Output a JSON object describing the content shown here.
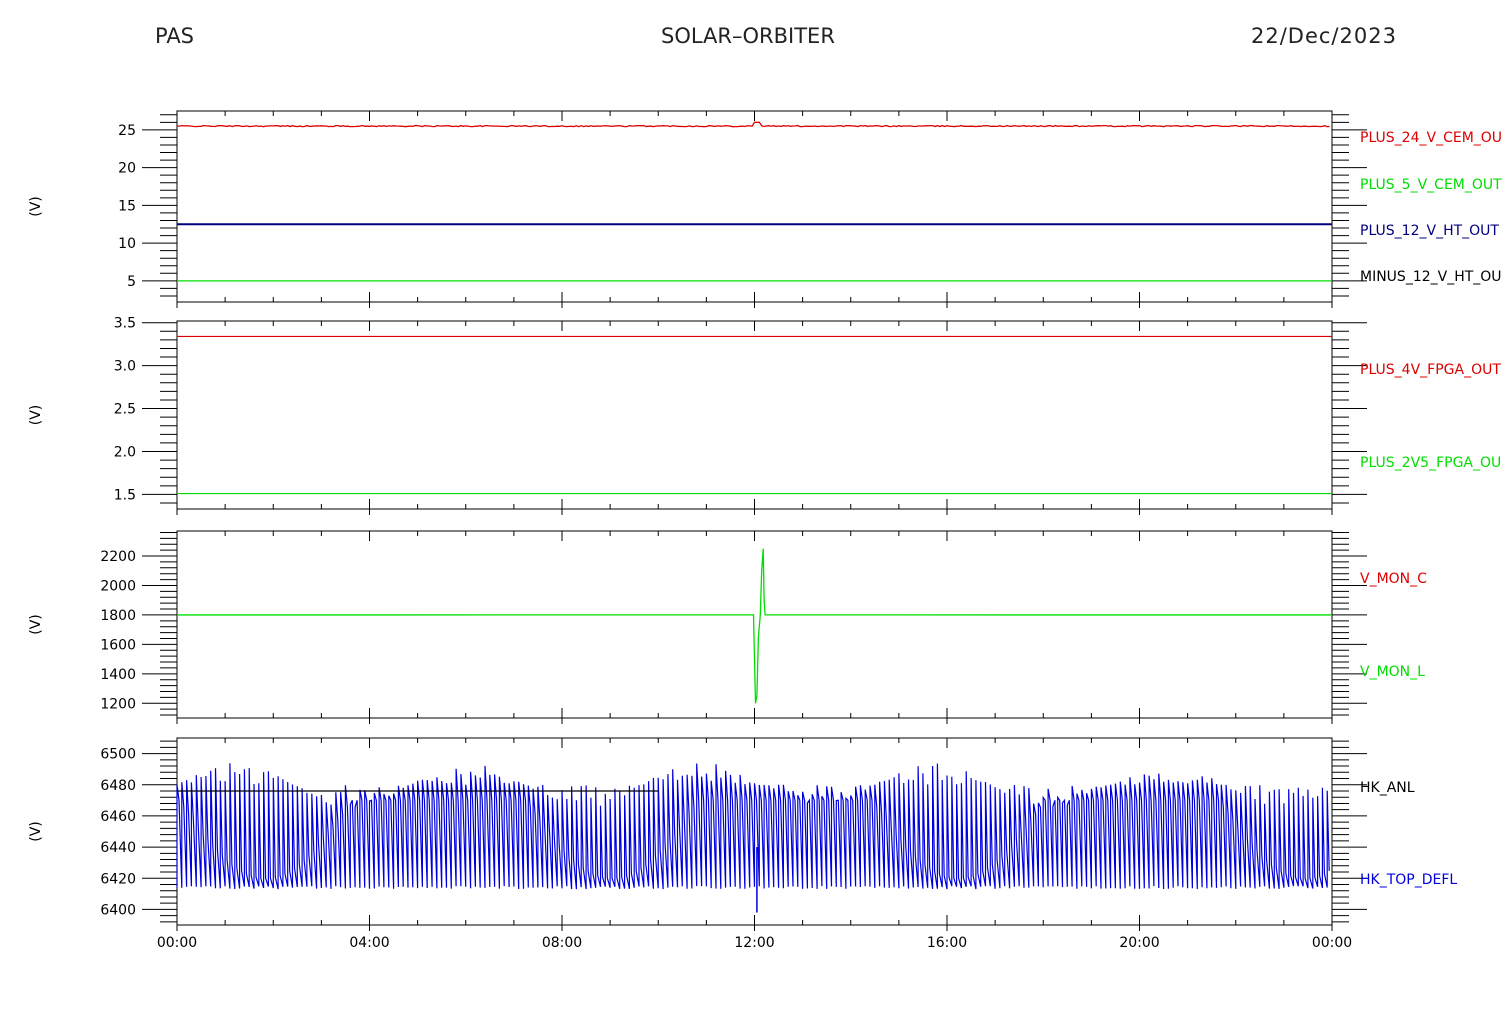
{
  "header": {
    "left": "PAS",
    "center": "SOLAR–ORBITER",
    "right": "22/Dec/2023"
  },
  "x_axis": {
    "tick_labels": [
      "00:00",
      "04:00",
      "08:00",
      "12:00",
      "16:00",
      "20:00",
      "00:00"
    ],
    "range_hours": [
      0,
      24
    ]
  },
  "colors": {
    "red": "#dd0000",
    "green": "#00dd00",
    "blue": "#0000dd",
    "navy": "#00007f",
    "black": "#000000"
  },
  "chart_data": [
    {
      "type": "line",
      "ylabel": "(V)",
      "ylim": [
        2.2,
        27.5
      ],
      "yticks": [
        5,
        10,
        15,
        20,
        25
      ],
      "ytick_labels": [
        "5",
        "10",
        "15",
        "20",
        "25"
      ],
      "legend": [
        {
          "name": "PLUS_24_V_CEM_OU",
          "color": "red"
        },
        {
          "name": "PLUS_5_V_CEM_OUT",
          "color": "green"
        },
        {
          "name": "PLUS_12_V_HT_OUT",
          "color": "navy"
        },
        {
          "name": "MINUS_12_V_HT_OU",
          "color": "black"
        }
      ],
      "series": [
        {
          "name": "PLUS_24_V_CEM_OU",
          "color": "red",
          "level": 25.5,
          "noise": 0.15,
          "spike": {
            "t": 12.05,
            "v": 26.0
          }
        },
        {
          "name": "PLUS_12_V_HT_OUT",
          "color": "navy",
          "level": 12.5
        },
        {
          "name": "PLUS_5_V_CEM_OUT",
          "color": "green",
          "level": 5.0
        }
      ]
    },
    {
      "type": "line",
      "ylabel": "(V)",
      "ylim": [
        1.33,
        3.52
      ],
      "yticks": [
        1.5,
        2.0,
        2.5,
        3.0,
        3.5
      ],
      "ytick_labels": [
        "1.5",
        "2.0",
        "2.5",
        "3.0",
        "3.5"
      ],
      "legend": [
        {
          "name": "PLUS_4V_FPGA_OUT",
          "color": "red"
        },
        {
          "name": "PLUS_2V5_FPGA_OU",
          "color": "green"
        }
      ],
      "series": [
        {
          "name": "PLUS_4V_FPGA_OUT",
          "color": "red",
          "level": 3.34
        },
        {
          "name": "PLUS_2V5_FPGA_OU",
          "color": "green",
          "level": 1.51
        }
      ]
    },
    {
      "type": "line",
      "ylabel": "(V)",
      "ylim": [
        1100,
        2370
      ],
      "yticks": [
        1200,
        1400,
        1600,
        1800,
        2000,
        2200
      ],
      "ytick_labels": [
        "1200",
        "1400",
        "1600",
        "1800",
        "2000",
        "2200"
      ],
      "legend": [
        {
          "name": "V_MON_C",
          "color": "red"
        },
        {
          "name": "V_MON_L",
          "color": "green"
        }
      ],
      "series": [
        {
          "name": "V_MON_L",
          "color": "green",
          "level": 1800,
          "transient": [
            [
              11.98,
              1800
            ],
            [
              12.02,
              1200
            ],
            [
              12.05,
              1250
            ],
            [
              12.08,
              1650
            ],
            [
              12.12,
              1800
            ],
            [
              12.15,
              2100
            ],
            [
              12.18,
              2250
            ],
            [
              12.2,
              1900
            ],
            [
              12.22,
              1800
            ]
          ]
        }
      ]
    },
    {
      "type": "line",
      "ylabel": "(V)",
      "ylim": [
        6390,
        6510
      ],
      "yticks": [
        6400,
        6420,
        6440,
        6460,
        6480,
        6500
      ],
      "ytick_labels": [
        "6400",
        "6420",
        "6440",
        "6460",
        "6480",
        "6500"
      ],
      "legend": [
        {
          "name": "HK_ANL",
          "color": "black"
        },
        {
          "name": "HK_TOP_DEFL",
          "color": "blue"
        }
      ],
      "series": [
        {
          "name": "HK_TOP_DEFL",
          "color": "blue",
          "min_level": 6413,
          "max_level_range": [
            6465,
            6495
          ],
          "oscillation_period_hours": 0.1,
          "dip_to": 6398
        },
        {
          "name": "HK_ANL",
          "color": "black",
          "level": 6476,
          "segment_hours": [
            0,
            10
          ]
        }
      ]
    }
  ]
}
